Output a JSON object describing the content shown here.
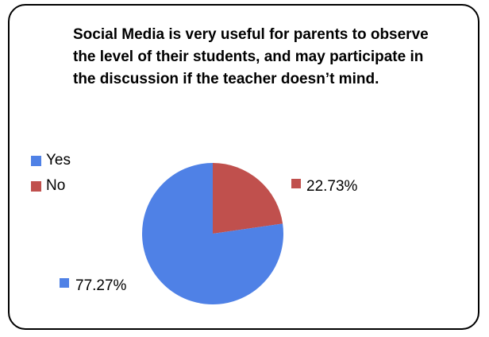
{
  "chart_data": {
    "type": "pie",
    "title": "Social Media is very useful for parents to observe the level of their students, and may participate in the discussion if the teacher doesn’t mind.",
    "categories": [
      "Yes",
      "No"
    ],
    "values": [
      77.27,
      22.73
    ],
    "data_labels": [
      "77.27%",
      "22.73%"
    ],
    "colors": [
      "#4F81E6",
      "#C0504D"
    ],
    "legend_placement": "left",
    "grid": false
  }
}
